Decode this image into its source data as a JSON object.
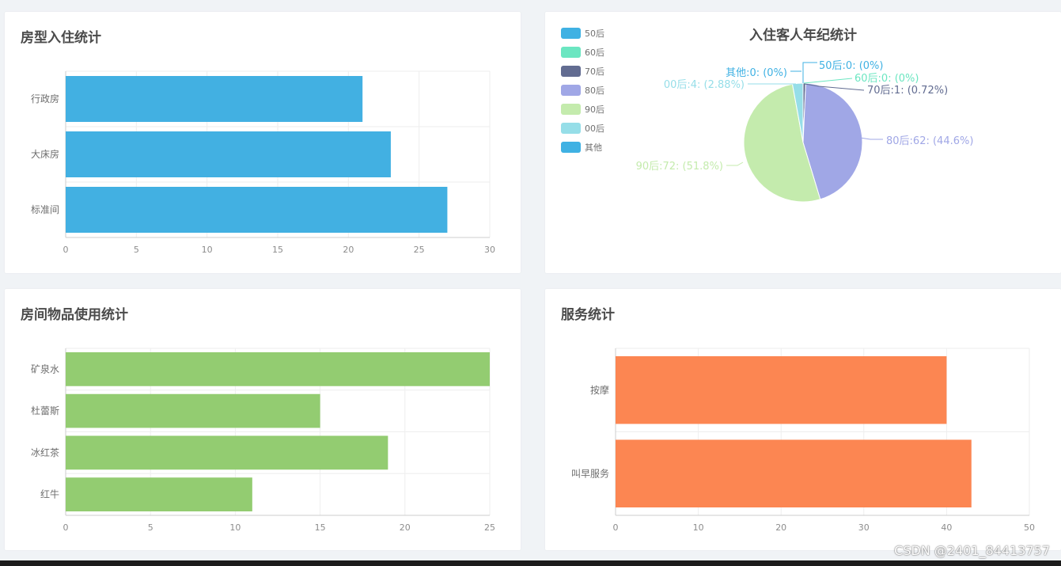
{
  "cards": {
    "room_title": "房型入住统计",
    "items_title": "房间物品使用统计",
    "service_title": "服务统计"
  },
  "watermark": "CSDN @2401_84413757",
  "chart_data": [
    {
      "id": "room",
      "type": "bar",
      "orientation": "horizontal",
      "title": "房型入住统计",
      "categories": [
        "标准间",
        "大床房",
        "行政房"
      ],
      "values": [
        27,
        23,
        21
      ],
      "xlim": [
        0,
        30
      ],
      "xticks": [
        0,
        5,
        10,
        15,
        20,
        25,
        30
      ],
      "color": "#42b0e2",
      "grid": true
    },
    {
      "id": "age",
      "type": "pie",
      "title": "入住客人年纪统计",
      "legend_position": "top-left",
      "slices": [
        {
          "name": "50后",
          "value": 0,
          "label": "50后:0: (0%)",
          "color": "#3fb1e3"
        },
        {
          "name": "60后",
          "value": 0,
          "label": "60后:0: (0%)",
          "color": "#6be6c1"
        },
        {
          "name": "70后",
          "value": 1,
          "label": "70后:1: (0.72%)",
          "color": "#626c91"
        },
        {
          "name": "80后",
          "value": 62,
          "label": "80后:62: (44.6%)",
          "color": "#a0a7e6"
        },
        {
          "name": "90后",
          "value": 72,
          "label": "90后:72: (51.8%)",
          "color": "#c4ebad"
        },
        {
          "name": "00后",
          "value": 4,
          "label": "00后:4: (2.88%)",
          "color": "#96dee8"
        },
        {
          "name": "其他",
          "value": 0,
          "label": "其他:0: (0%)",
          "color": "#3fb1e3"
        }
      ]
    },
    {
      "id": "items",
      "type": "bar",
      "orientation": "horizontal",
      "title": "房间物品使用统计",
      "categories": [
        "红牛",
        "冰红茶",
        "杜蕾斯",
        "矿泉水"
      ],
      "values": [
        11,
        19,
        15,
        25
      ],
      "xlim": [
        0,
        25
      ],
      "xticks": [
        0,
        5,
        10,
        15,
        20,
        25
      ],
      "color": "#93cc71",
      "grid": true
    },
    {
      "id": "service",
      "type": "bar",
      "orientation": "horizontal",
      "title": "服务统计",
      "categories": [
        "叫早服务",
        "按摩"
      ],
      "values": [
        43,
        40
      ],
      "xlim": [
        0,
        50
      ],
      "xticks": [
        0,
        10,
        20,
        30,
        40,
        50
      ],
      "color": "#fc8652",
      "grid": true
    }
  ]
}
